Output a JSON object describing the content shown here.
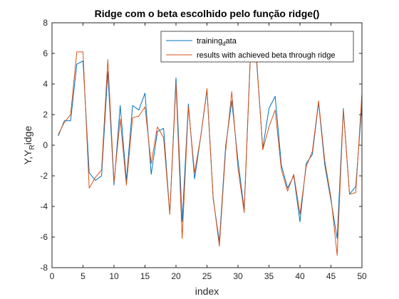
{
  "chart_data": {
    "type": "line",
    "title": "Ridge com o beta escolhido pelo função ridge()",
    "xlabel": "index",
    "ylabel": {
      "main": "Y,Y",
      "sub": "R",
      "rest": "idge"
    },
    "xlim": [
      0,
      50
    ],
    "ylim": [
      -8,
      8
    ],
    "xticks": [
      0,
      5,
      10,
      15,
      20,
      25,
      30,
      35,
      40,
      45,
      50
    ],
    "yticks": [
      -8,
      -6,
      -4,
      -2,
      0,
      2,
      4,
      6,
      8
    ],
    "grid": false,
    "legend_position": "top-right",
    "x": [
      1,
      2,
      3,
      4,
      5,
      6,
      7,
      8,
      9,
      10,
      11,
      12,
      13,
      14,
      15,
      16,
      17,
      18,
      19,
      20,
      21,
      22,
      23,
      24,
      25,
      26,
      27,
      28,
      29,
      30,
      31,
      32,
      33,
      34,
      35,
      36,
      37,
      38,
      39,
      40,
      41,
      42,
      43,
      44,
      45,
      46,
      47,
      48,
      49,
      50
    ],
    "series": [
      {
        "name": {
          "main": "training",
          "sub": "d",
          "rest": "ata"
        },
        "color": "#0072BD",
        "values": [
          0.6,
          1.6,
          1.6,
          5.3,
          5.5,
          -1.8,
          -2.3,
          -2.0,
          4.8,
          -2.6,
          2.6,
          -2.3,
          2.6,
          2.3,
          3.4,
          -1.9,
          0.9,
          1.1,
          -4.5,
          4.4,
          -5.0,
          2.7,
          -2.2,
          0.6,
          3.6,
          -3.5,
          -6.3,
          -0.1,
          2.9,
          -1.0,
          -4.2,
          5.9,
          5.5,
          -0.2,
          2.4,
          3.2,
          -1.3,
          -2.8,
          -2.0,
          -5.0,
          -1.2,
          -0.6,
          2.8,
          -1.3,
          -3.6,
          -6.1,
          2.4,
          -3.2,
          -2.7,
          2.7
        ]
      },
      {
        "name": "results with achieved beta through ridge",
        "color": "#D95319",
        "values": [
          0.7,
          1.5,
          2.0,
          6.1,
          6.1,
          -2.8,
          -2.1,
          -1.6,
          5.6,
          -2.4,
          1.7,
          -2.6,
          1.8,
          1.9,
          2.5,
          -1.2,
          1.2,
          0.5,
          -4.5,
          4.0,
          -6.1,
          2.5,
          -1.8,
          0.6,
          3.7,
          -3.4,
          -6.6,
          -0.4,
          3.5,
          -1.5,
          -4.4,
          5.8,
          5.7,
          -0.3,
          1.2,
          2.3,
          -1.6,
          -3.0,
          -1.9,
          -4.5,
          -1.4,
          -0.4,
          2.9,
          -1.0,
          -3.4,
          -7.2,
          2.3,
          -3.2,
          -3.1,
          3.4
        ]
      }
    ]
  }
}
